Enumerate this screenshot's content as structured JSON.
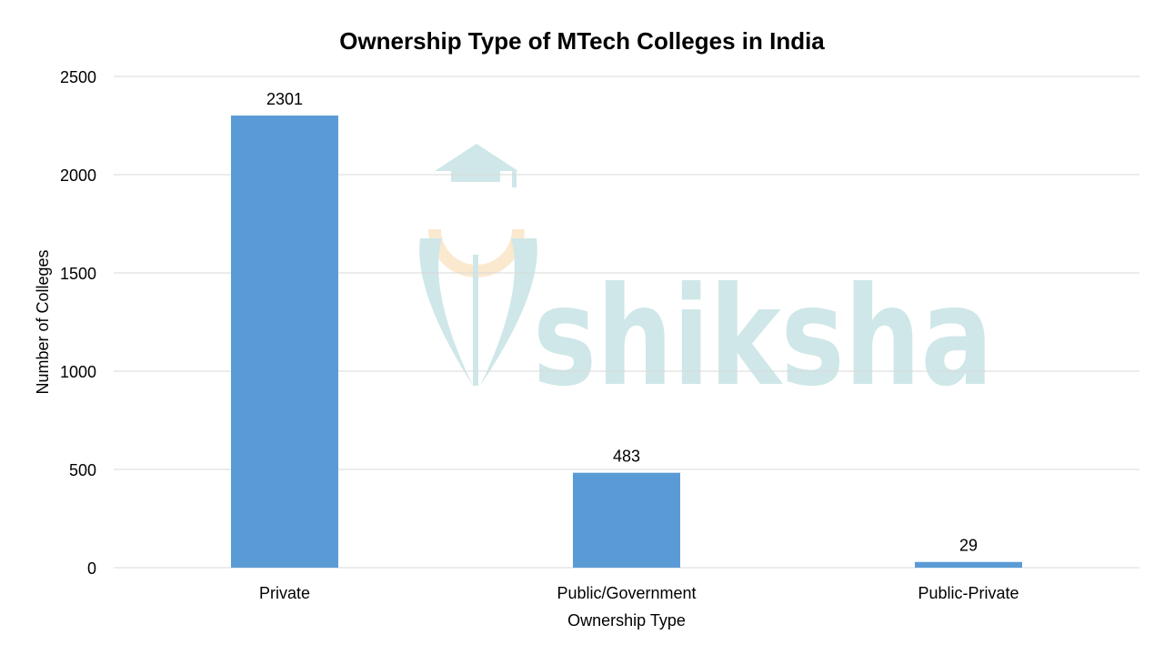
{
  "chart_data": {
    "type": "bar",
    "title": "Ownership Type of MTech Colleges in India",
    "xlabel": "Ownership Type",
    "ylabel": "Number of Colleges",
    "categories": [
      "Private",
      "Public/Government",
      "Public-Private"
    ],
    "values": [
      2301,
      483,
      29
    ],
    "data_labels": [
      "2301",
      "483",
      "29"
    ],
    "ylim": [
      0,
      2500
    ],
    "yticks": [
      0,
      500,
      1000,
      1500,
      2000,
      2500
    ],
    "ytick_labels": [
      "0",
      "500",
      "1000",
      "1500",
      "2000",
      "2500"
    ],
    "grid": true,
    "legend": "none",
    "bar_color": "#5b9bd5",
    "grid_color": "#d9d9d9"
  },
  "watermark": {
    "text": "shiksha",
    "text_color": "#cfe7e8",
    "accent_color": "#fbe9cf",
    "icon": "graduation-cap-logo-icon"
  }
}
